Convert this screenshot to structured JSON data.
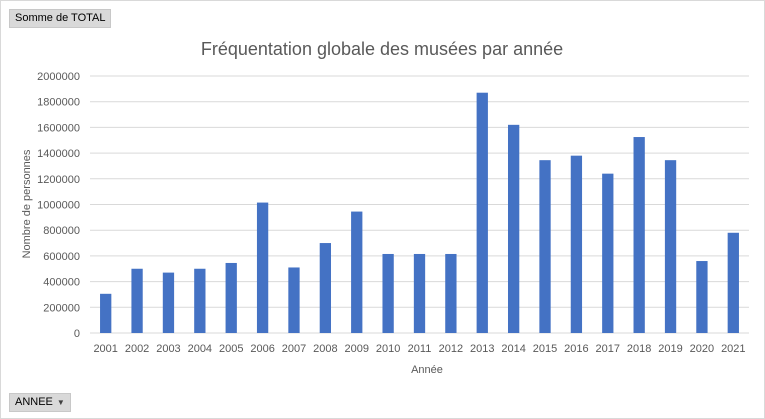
{
  "pivot": {
    "value_field_label": "Somme de TOTAL",
    "axis_field_label": "ANNEE",
    "dropdown_icon": "triangle-down-icon"
  },
  "chart_data": {
    "type": "bar",
    "title": "Fréquentation globale des musées par année",
    "xlabel": "Année",
    "ylabel": "Nombre de personnes",
    "ylim": [
      0,
      2000000
    ],
    "ytick_step": 200000,
    "grid": true,
    "legend": "none",
    "bar_color": "#4472c4",
    "categories": [
      "2001",
      "2002",
      "2003",
      "2004",
      "2005",
      "2006",
      "2007",
      "2008",
      "2009",
      "2010",
      "2011",
      "2012",
      "2013",
      "2014",
      "2015",
      "2016",
      "2017",
      "2018",
      "2019",
      "2020",
      "2021"
    ],
    "values": [
      305000,
      500000,
      470000,
      500000,
      545000,
      1015000,
      510000,
      700000,
      945000,
      615000,
      615000,
      615000,
      1870000,
      1620000,
      1345000,
      1380000,
      1240000,
      1525000,
      1345000,
      560000,
      780000
    ]
  }
}
